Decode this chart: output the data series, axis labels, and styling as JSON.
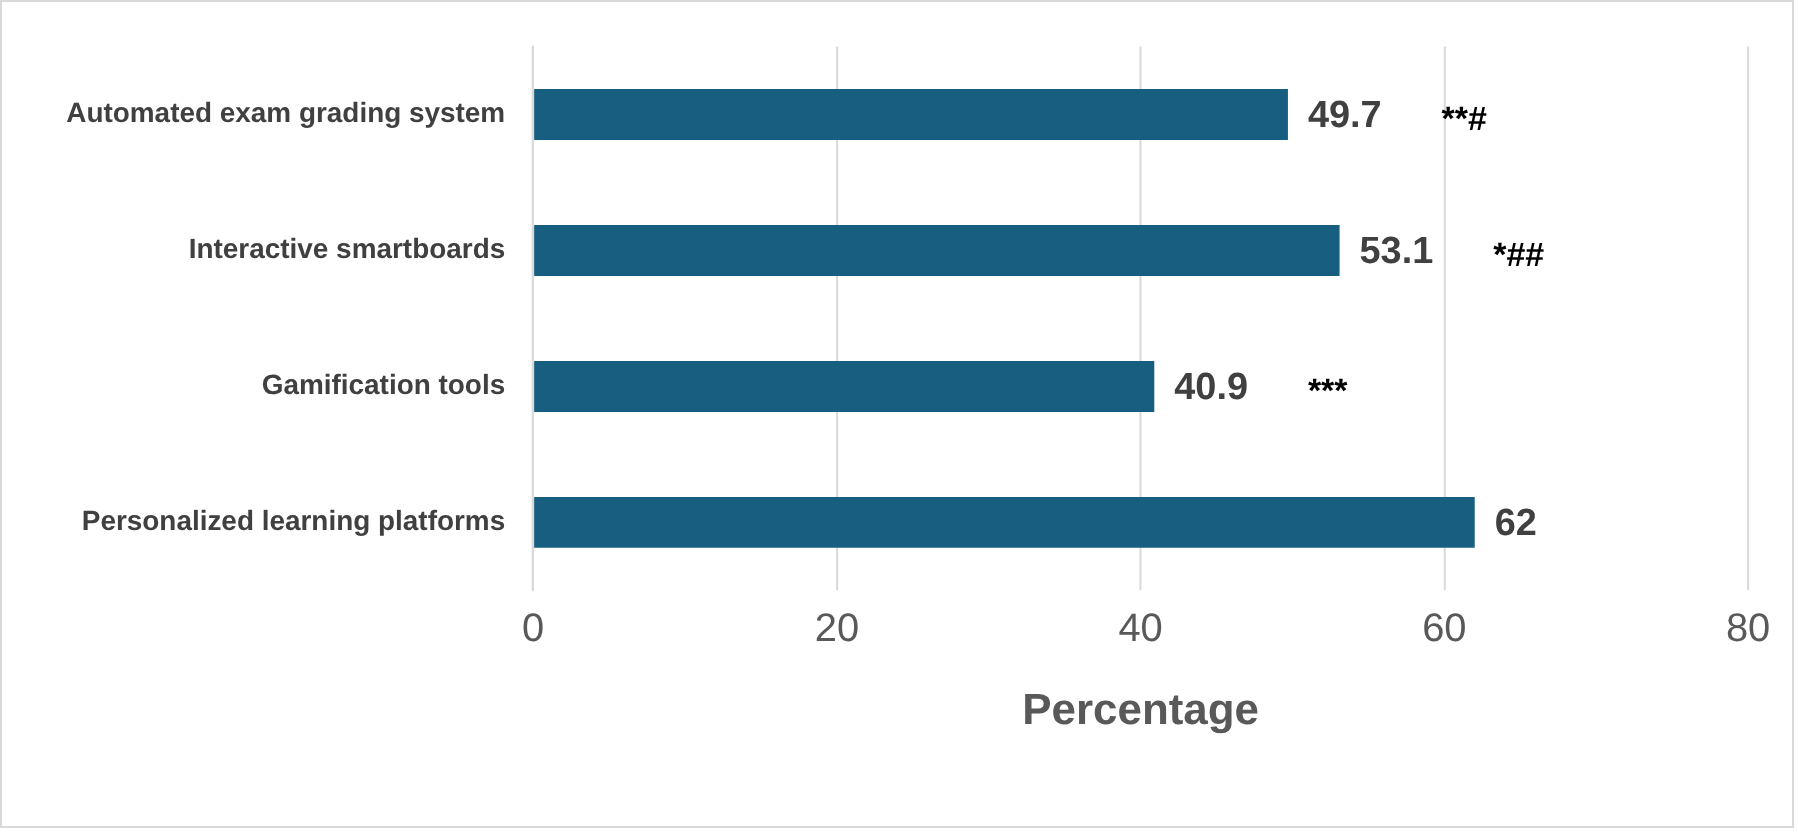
{
  "chart_data": {
    "type": "bar",
    "orientation": "horizontal",
    "categories": [
      "Automated exam grading system",
      "Interactive smartboards",
      "Gamification tools",
      "Personalized learning platforms"
    ],
    "values": [
      49.7,
      53.1,
      40.9,
      62
    ],
    "color": "#175e80",
    "data_labels": true,
    "xlabel": "Percentage",
    "xlim": [
      0,
      80
    ],
    "xticks": [
      0,
      20,
      40,
      60,
      80
    ],
    "grid": "x",
    "legend": false,
    "annotations": [
      "**#",
      "*##",
      "***"
    ]
  }
}
